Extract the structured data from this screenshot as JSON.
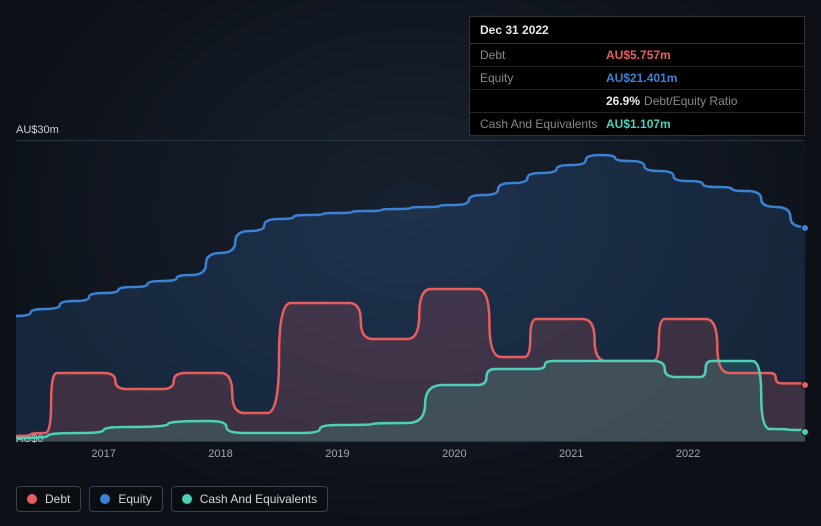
{
  "tooltip": {
    "date": "Dec 31 2022",
    "rows": [
      {
        "label": "Debt",
        "value": "AU$5.757m",
        "cls": "debt"
      },
      {
        "label": "Equity",
        "value": "AU$21.401m",
        "cls": "equity"
      },
      {
        "label": "",
        "value": "26.9%",
        "suffix": "Debt/Equity Ratio",
        "cls": "ratio"
      },
      {
        "label": "Cash And Equivalents",
        "value": "AU$1.107m",
        "cls": "cash"
      }
    ]
  },
  "chart": {
    "type": "area",
    "background_color": "transparent",
    "grid_color": "#2a3340",
    "y_top_label": "AU$30m",
    "y_bottom_label": "AU$0",
    "y_min": 0,
    "y_max": 30,
    "x_categories": [
      "2017",
      "2018",
      "2019",
      "2020",
      "2021",
      "2022"
    ],
    "x_min": 2016.25,
    "x_max": 2023.0,
    "line_width": 2.5,
    "fill_opacity": 0.18,
    "marker_at_x": 2023.0,
    "series": [
      {
        "name": "Equity",
        "color": "#3b82d4",
        "points": [
          [
            2016.25,
            12.5
          ],
          [
            2016.5,
            13.2
          ],
          [
            2016.75,
            14.0
          ],
          [
            2017.0,
            14.8
          ],
          [
            2017.25,
            15.4
          ],
          [
            2017.5,
            16.0
          ],
          [
            2017.75,
            16.6
          ],
          [
            2018.0,
            18.8
          ],
          [
            2018.25,
            21.0
          ],
          [
            2018.5,
            22.2
          ],
          [
            2018.75,
            22.6
          ],
          [
            2019.0,
            22.8
          ],
          [
            2019.25,
            23.0
          ],
          [
            2019.5,
            23.2
          ],
          [
            2019.75,
            23.4
          ],
          [
            2020.0,
            23.6
          ],
          [
            2020.25,
            24.6
          ],
          [
            2020.5,
            25.8
          ],
          [
            2020.75,
            26.8
          ],
          [
            2021.0,
            27.6
          ],
          [
            2021.25,
            28.6
          ],
          [
            2021.5,
            28.0
          ],
          [
            2021.75,
            27.0
          ],
          [
            2022.0,
            26.0
          ],
          [
            2022.25,
            25.4
          ],
          [
            2022.5,
            25.0
          ],
          [
            2022.75,
            23.4
          ],
          [
            2023.0,
            21.4
          ]
        ]
      },
      {
        "name": "Debt",
        "color": "#e85d5d",
        "points": [
          [
            2016.25,
            0.5
          ],
          [
            2016.5,
            0.8
          ],
          [
            2016.6,
            6.8
          ],
          [
            2017.0,
            6.8
          ],
          [
            2017.2,
            5.2
          ],
          [
            2017.5,
            5.2
          ],
          [
            2017.7,
            6.8
          ],
          [
            2018.0,
            6.8
          ],
          [
            2018.2,
            2.8
          ],
          [
            2018.4,
            2.8
          ],
          [
            2018.6,
            13.8
          ],
          [
            2019.1,
            13.8
          ],
          [
            2019.3,
            10.2
          ],
          [
            2019.6,
            10.2
          ],
          [
            2019.8,
            15.2
          ],
          [
            2020.2,
            15.2
          ],
          [
            2020.4,
            8.4
          ],
          [
            2020.6,
            8.4
          ],
          [
            2020.7,
            12.2
          ],
          [
            2021.1,
            12.2
          ],
          [
            2021.3,
            8.0
          ],
          [
            2021.7,
            8.0
          ],
          [
            2021.8,
            12.2
          ],
          [
            2022.15,
            12.2
          ],
          [
            2022.35,
            6.8
          ],
          [
            2022.7,
            6.8
          ],
          [
            2022.8,
            5.76
          ],
          [
            2023.0,
            5.76
          ]
        ]
      },
      {
        "name": "Cash And Equivalents",
        "color": "#4dd0b8",
        "points": [
          [
            2016.25,
            0.3
          ],
          [
            2016.8,
            0.8
          ],
          [
            2017.2,
            1.4
          ],
          [
            2017.9,
            2.0
          ],
          [
            2018.2,
            0.8
          ],
          [
            2018.7,
            0.8
          ],
          [
            2019.0,
            1.6
          ],
          [
            2019.6,
            1.8
          ],
          [
            2019.9,
            5.6
          ],
          [
            2020.2,
            5.6
          ],
          [
            2020.35,
            7.2
          ],
          [
            2020.7,
            7.2
          ],
          [
            2020.85,
            8.0
          ],
          [
            2021.7,
            8.0
          ],
          [
            2021.9,
            6.4
          ],
          [
            2022.1,
            6.4
          ],
          [
            2022.2,
            8.0
          ],
          [
            2022.55,
            8.0
          ],
          [
            2022.7,
            1.2
          ],
          [
            2023.0,
            1.1
          ]
        ]
      }
    ],
    "end_markers": [
      {
        "color": "#3b82d4",
        "x": 2023.0,
        "y": 21.4
      },
      {
        "color": "#e85d5d",
        "x": 2023.0,
        "y": 5.76
      },
      {
        "color": "#4dd0b8",
        "x": 2023.0,
        "y": 1.1
      }
    ]
  },
  "legend": {
    "items": [
      {
        "label": "Debt",
        "color": "#e85d5d"
      },
      {
        "label": "Equity",
        "color": "#3b82d4"
      },
      {
        "label": "Cash And Equivalents",
        "color": "#4dd0b8"
      }
    ]
  }
}
